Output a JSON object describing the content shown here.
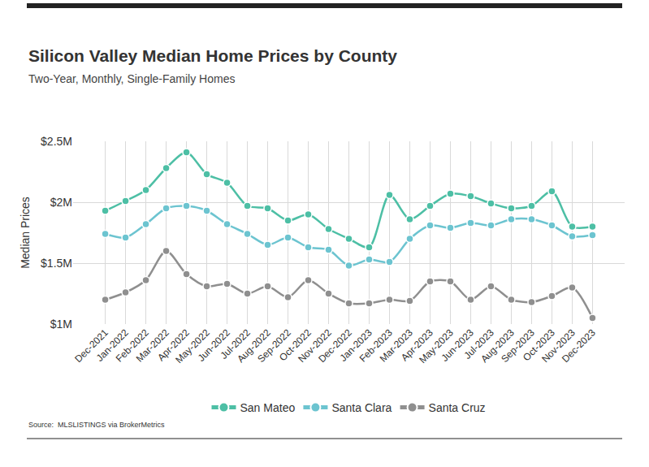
{
  "chart_data": {
    "type": "line",
    "title": "Silicon Valley Median Home Prices by County",
    "subtitle": "Two-Year, Monthly, Single-Family Homes",
    "y_label": "Median Prices",
    "source": "Source:  MLSLISTINGS via BrokerMetrics",
    "categories": [
      "Dec-2021",
      "Jan-2022",
      "Feb-2022",
      "Mar-2022",
      "Apr-2022",
      "May-2022",
      "Jun-2022",
      "Jul-2022",
      "Aug-2022",
      "Sep-2022",
      "Oct-2022",
      "Nov-2022",
      "Dec-2022",
      "Jan-2023",
      "Feb-2023",
      "Mar-2023",
      "Apr-2023",
      "May-2023",
      "Jun-2023",
      "Jul-2023",
      "Aug-2023",
      "Sep-2023",
      "Oct-2023",
      "Nov-2023",
      "Dec-2023"
    ],
    "series": [
      {
        "name": "San Mateo",
        "color": "#4dbfa5",
        "values": [
          1930000,
          2010000,
          2100000,
          2280000,
          2410000,
          2230000,
          2160000,
          1970000,
          1950000,
          1850000,
          1900000,
          1780000,
          1700000,
          1630000,
          2060000,
          1860000,
          1970000,
          2070000,
          2050000,
          1990000,
          1950000,
          1970000,
          2090000,
          1800000,
          1800000
        ]
      },
      {
        "name": "Santa Clara",
        "color": "#6cc4d0",
        "values": [
          1740000,
          1710000,
          1820000,
          1950000,
          1970000,
          1930000,
          1820000,
          1740000,
          1650000,
          1710000,
          1630000,
          1610000,
          1480000,
          1530000,
          1510000,
          1700000,
          1810000,
          1790000,
          1830000,
          1810000,
          1860000,
          1860000,
          1810000,
          1720000,
          1730000
        ]
      },
      {
        "name": "Santa Cruz",
        "color": "#8f8f8f",
        "values": [
          1200000,
          1260000,
          1360000,
          1600000,
          1410000,
          1310000,
          1330000,
          1250000,
          1310000,
          1220000,
          1360000,
          1250000,
          1170000,
          1170000,
          1200000,
          1190000,
          1350000,
          1350000,
          1200000,
          1310000,
          1200000,
          1180000,
          1230000,
          1300000,
          1050000
        ]
      }
    ],
    "ylim": [
      1000000,
      2500000
    ],
    "yticks": [
      {
        "value": 1000000,
        "label": "$1M"
      },
      {
        "value": 1500000,
        "label": "$1.5M"
      },
      {
        "value": 2000000,
        "label": "$2M"
      },
      {
        "value": 2500000,
        "label": "$2.5M"
      }
    ],
    "grid": true,
    "legend": "bottom",
    "marker": "circle",
    "line_style": "solid"
  }
}
